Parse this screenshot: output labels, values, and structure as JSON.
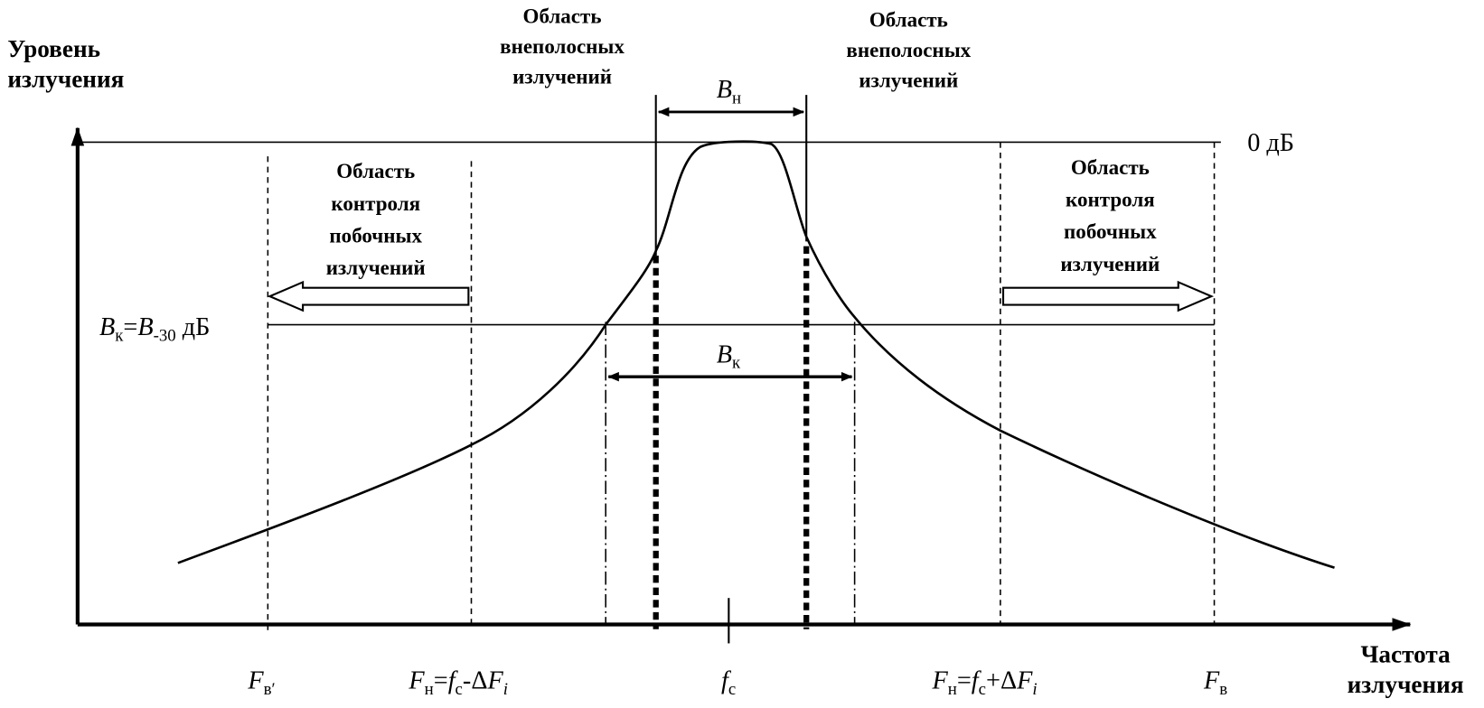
{
  "axes": {
    "y_label": [
      "Уровень",
      "излучения"
    ],
    "x_label": [
      "Частота",
      "излучения"
    ]
  },
  "levels": {
    "top": "0 дБ",
    "control": [
      "B",
      "к",
      "=",
      "B",
      "-30",
      " дБ"
    ]
  },
  "widths": {
    "necessary": [
      "B",
      "н"
    ],
    "control": [
      "B",
      "к"
    ]
  },
  "regions": {
    "out_of_band_left": [
      "Область",
      "внеполосных",
      "излучений"
    ],
    "out_of_band_right": [
      "Область",
      "внеполосных",
      "излучений"
    ],
    "spurious_left": [
      "Область",
      "контроля",
      "побочных",
      "излучений"
    ],
    "spurious_right": [
      "Область",
      "контроля",
      "побочных",
      "излучений"
    ]
  },
  "frequencies": {
    "upper_left": [
      "F",
      "в′"
    ],
    "lower_left": [
      "F",
      "н",
      "=",
      "f",
      "с",
      "-Δ",
      "F",
      "i"
    ],
    "center": [
      "f",
      "с"
    ],
    "lower_right": [
      "F",
      "н",
      "=",
      "f",
      "с",
      "+Δ",
      "F",
      "i"
    ],
    "upper_right": [
      "F",
      "в"
    ]
  }
}
